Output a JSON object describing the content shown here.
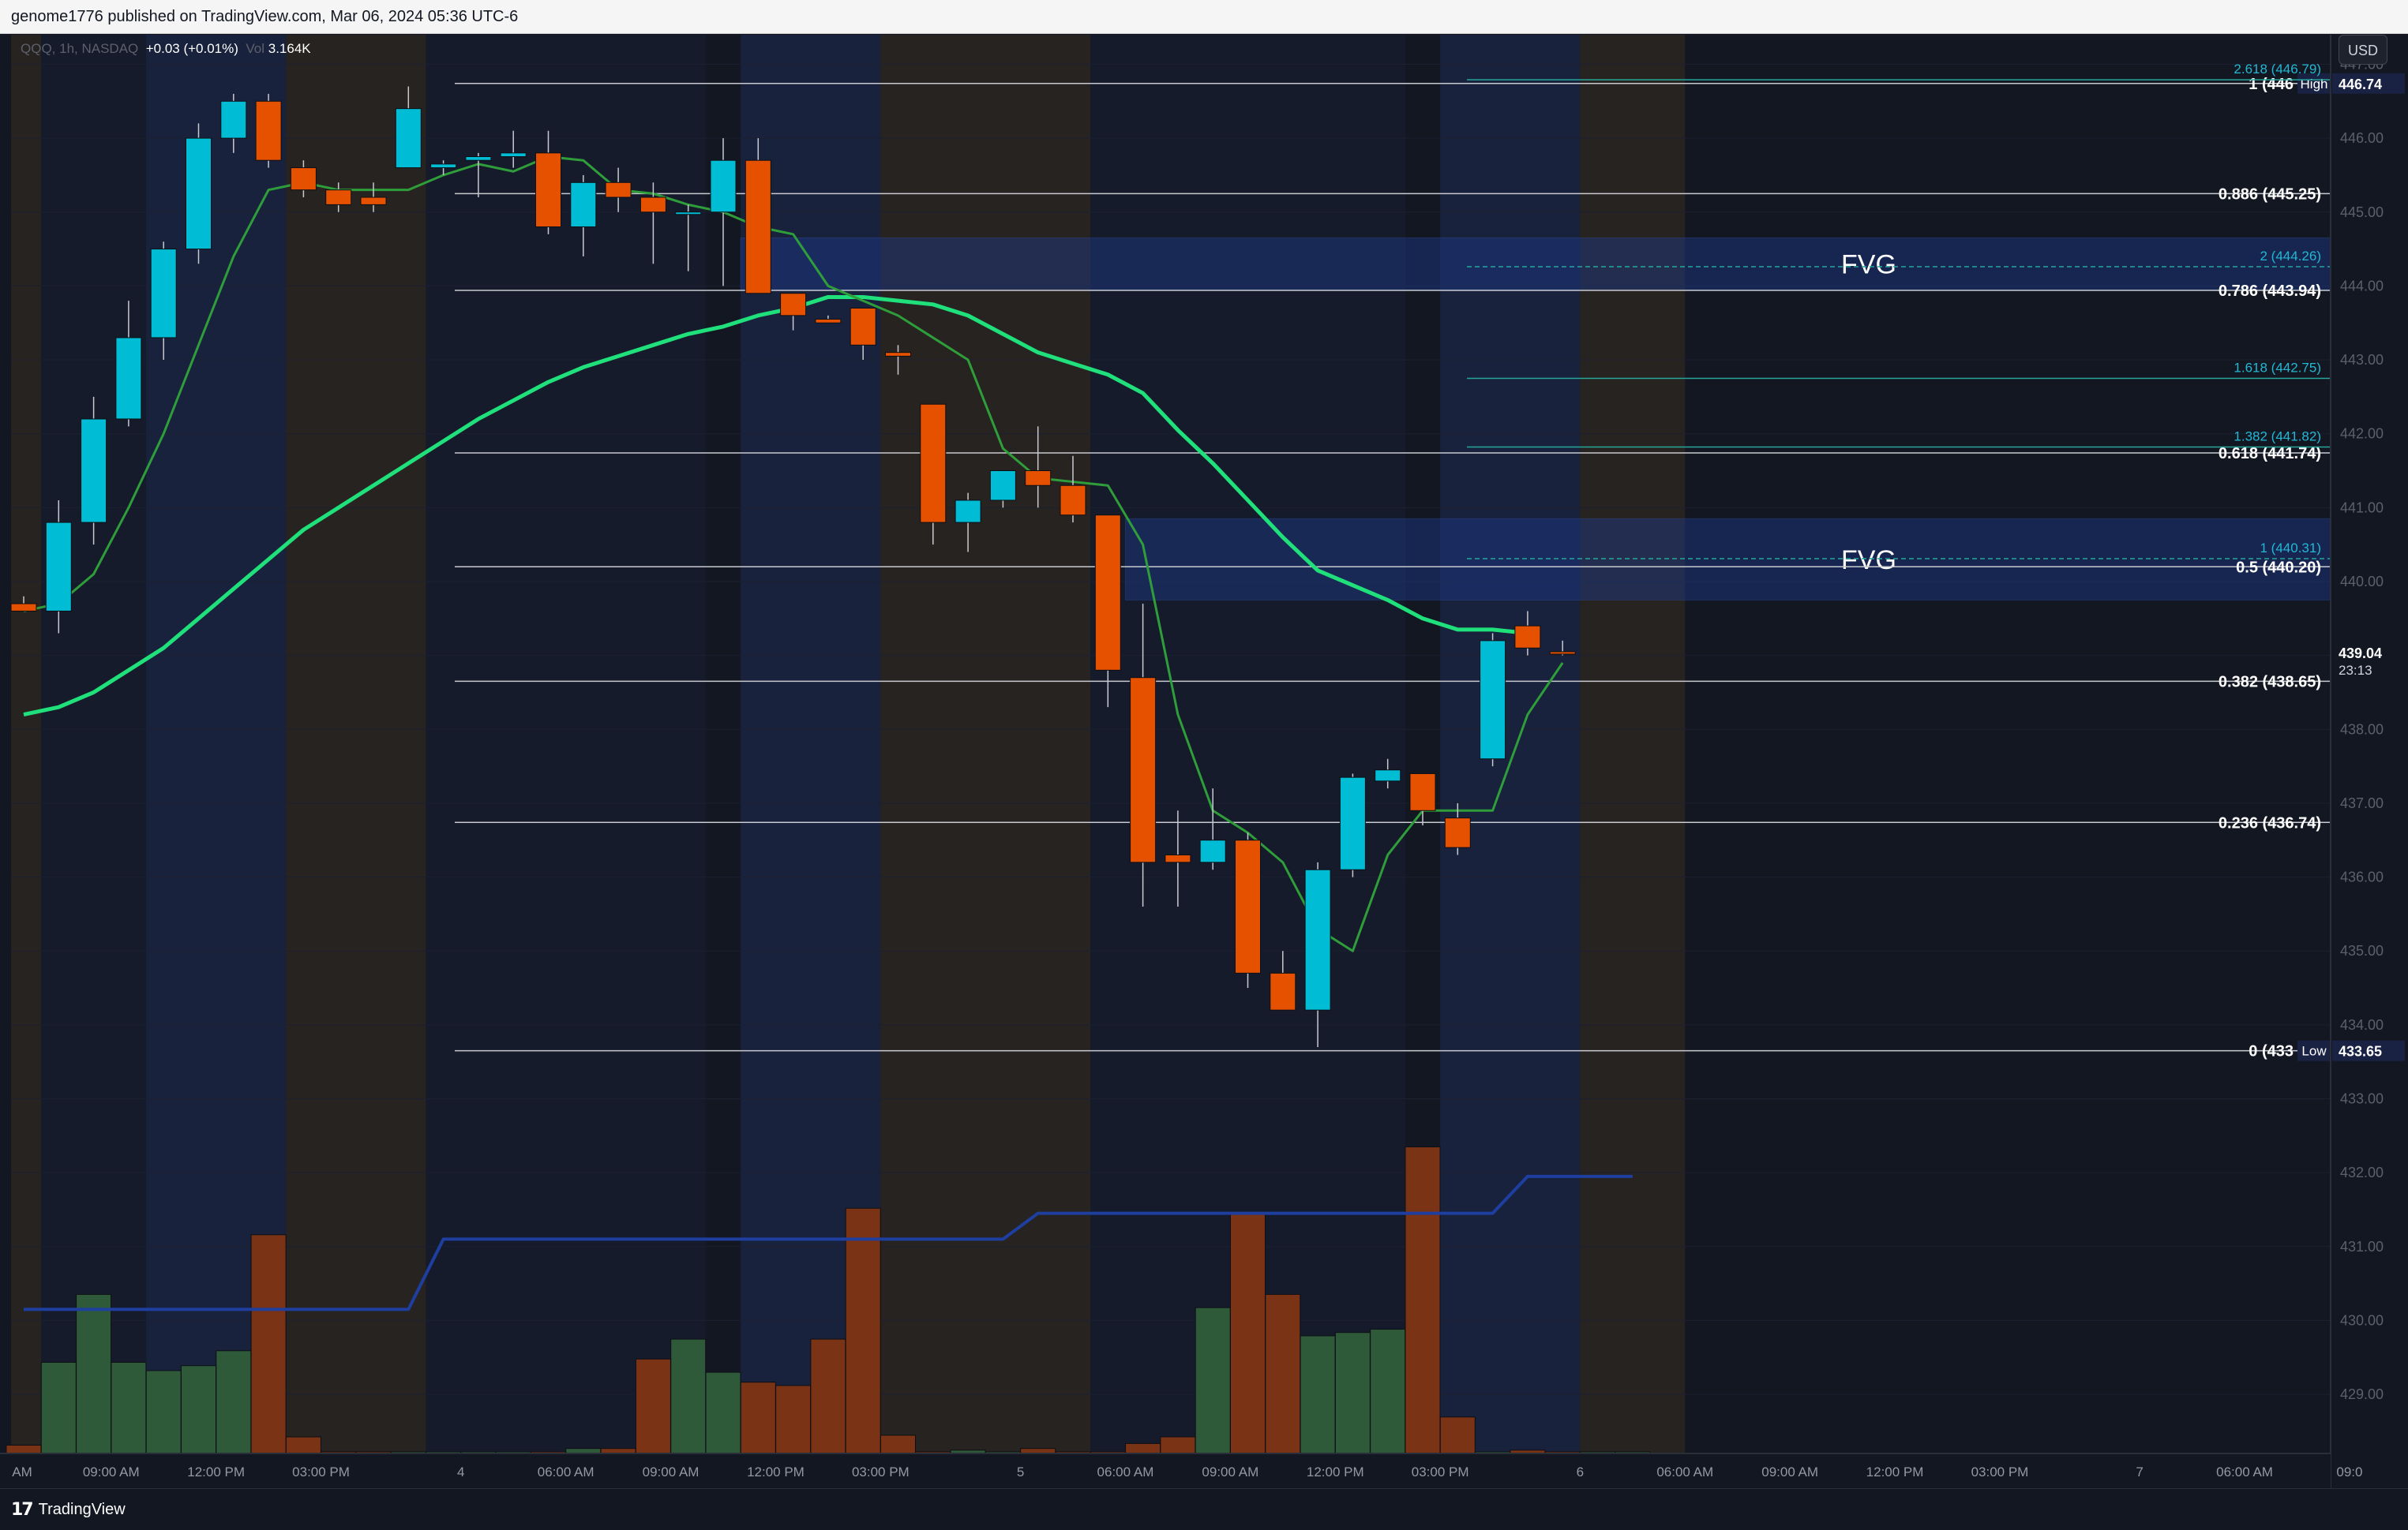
{
  "header": {
    "published_text": "genome1776 published on TradingView.com, Mar 06, 2024 05:36 UTC-6"
  },
  "legend": {
    "symbol": "QQQ, 1h, NASDAQ",
    "change": "+0.03 (+0.01%)",
    "vol_label": "Vol",
    "vol_value": "3.164K"
  },
  "currency_button": "USD",
  "footer": {
    "logo_mark": "17",
    "logo_text": "TradingView"
  },
  "colors": {
    "background": "#131722",
    "up": "#00bcd4",
    "down": "#e65100",
    "vol_up": "#2e5a3a",
    "vol_down": "#7a3314",
    "ema_fast": "#2e9d3a",
    "ema_slow": "#1fe07a",
    "vwap": "#1e3fa0",
    "fvg": "#1e3a8a",
    "fib_ext": "#26a69a",
    "session_blue": "#1a2440",
    "session_brown": "#2a2520"
  },
  "chart_data": {
    "type": "candlestick",
    "y_range": [
      428.2,
      447.4
    ],
    "y_ticks": [
      "429.00",
      "430.00",
      "431.00",
      "432.00",
      "433.00",
      "434.00",
      "435.00",
      "436.00",
      "437.00",
      "438.00",
      "439.00",
      "440.00",
      "441.00",
      "442.00",
      "443.00",
      "444.00",
      "445.00",
      "446.00",
      "447.00"
    ],
    "x_labels": [
      "AM",
      "09:00 AM",
      "12:00 PM",
      "03:00 PM",
      "4",
      "06:00 AM",
      "09:00 AM",
      "12:00 PM",
      "03:00 PM",
      "5",
      "06:00 AM",
      "09:00 AM",
      "12:00 PM",
      "03:00 PM",
      "6",
      "06:00 AM",
      "09:00 AM",
      "12:00 PM",
      "03:00 PM",
      "7",
      "06:00 AM",
      "09:0"
    ],
    "x_label_positions": [
      0,
      2.5,
      5.5,
      8.5,
      12.5,
      15.5,
      18.5,
      21.5,
      24.5,
      28.5,
      31.5,
      34.5,
      37.5,
      40.5,
      44.5,
      47.5,
      50.5,
      53.5,
      56.5,
      60.5,
      63.5,
      66.5
    ],
    "candles": [
      {
        "o": 439.7,
        "h": 439.8,
        "l": 439.65,
        "c": 439.6
      },
      {
        "o": 439.6,
        "h": 441.1,
        "l": 439.3,
        "c": 440.8
      },
      {
        "o": 440.8,
        "h": 442.5,
        "l": 440.5,
        "c": 442.2
      },
      {
        "o": 442.2,
        "h": 443.8,
        "l": 442.1,
        "c": 443.3
      },
      {
        "o": 443.3,
        "h": 444.6,
        "l": 443.0,
        "c": 444.5
      },
      {
        "o": 444.5,
        "h": 446.2,
        "l": 444.3,
        "c": 446.0
      },
      {
        "o": 446.0,
        "h": 446.6,
        "l": 445.8,
        "c": 446.5
      },
      {
        "o": 446.5,
        "h": 446.6,
        "l": 445.6,
        "c": 445.7
      },
      {
        "o": 445.6,
        "h": 445.7,
        "l": 445.2,
        "c": 445.3
      },
      {
        "o": 445.3,
        "h": 445.4,
        "l": 445.0,
        "c": 445.1
      },
      {
        "o": 445.2,
        "h": 445.4,
        "l": 445.0,
        "c": 445.1
      },
      {
        "o": 445.6,
        "h": 446.7,
        "l": 445.6,
        "c": 446.4
      },
      {
        "o": 445.6,
        "h": 445.7,
        "l": 445.5,
        "c": 445.65
      },
      {
        "o": 445.7,
        "h": 445.8,
        "l": 445.2,
        "c": 445.75
      },
      {
        "o": 445.75,
        "h": 446.1,
        "l": 445.6,
        "c": 445.8
      },
      {
        "o": 445.8,
        "h": 446.1,
        "l": 444.7,
        "c": 444.8
      },
      {
        "o": 444.8,
        "h": 445.5,
        "l": 444.4,
        "c": 445.4
      },
      {
        "o": 445.4,
        "h": 445.6,
        "l": 445.0,
        "c": 445.2
      },
      {
        "o": 445.2,
        "h": 445.4,
        "l": 444.3,
        "c": 445.0
      },
      {
        "o": 445.0,
        "h": 445.1,
        "l": 444.2,
        "c": 445.0
      },
      {
        "o": 445.0,
        "h": 446.0,
        "l": 444.0,
        "c": 445.7
      },
      {
        "o": 445.7,
        "h": 446.0,
        "l": 443.9,
        "c": 443.9
      },
      {
        "o": 443.9,
        "h": 443.9,
        "l": 443.4,
        "c": 443.6
      },
      {
        "o": 443.55,
        "h": 443.6,
        "l": 443.5,
        "c": 443.5
      },
      {
        "o": 443.7,
        "h": 443.7,
        "l": 443.0,
        "c": 443.2
      },
      {
        "o": 443.1,
        "h": 443.2,
        "l": 442.8,
        "c": 443.05
      },
      {
        "o": 442.4,
        "h": 442.4,
        "l": 440.5,
        "c": 440.8
      },
      {
        "o": 440.8,
        "h": 441.2,
        "l": 440.4,
        "c": 441.1
      },
      {
        "o": 441.1,
        "h": 441.5,
        "l": 441.0,
        "c": 441.5
      },
      {
        "o": 441.5,
        "h": 442.1,
        "l": 441.0,
        "c": 441.3
      },
      {
        "o": 441.3,
        "h": 441.7,
        "l": 440.8,
        "c": 440.9
      },
      {
        "o": 440.9,
        "h": 440.9,
        "l": 438.3,
        "c": 438.8
      },
      {
        "o": 438.7,
        "h": 439.7,
        "l": 435.6,
        "c": 436.2
      },
      {
        "o": 436.3,
        "h": 436.9,
        "l": 435.6,
        "c": 436.2
      },
      {
        "o": 436.2,
        "h": 437.2,
        "l": 436.1,
        "c": 436.5
      },
      {
        "o": 436.5,
        "h": 436.6,
        "l": 434.5,
        "c": 434.7
      },
      {
        "o": 434.7,
        "h": 435.0,
        "l": 434.2,
        "c": 434.2
      },
      {
        "o": 434.2,
        "h": 436.2,
        "l": 433.7,
        "c": 436.1
      },
      {
        "o": 436.1,
        "h": 437.4,
        "l": 436.0,
        "c": 437.35
      },
      {
        "o": 437.3,
        "h": 437.6,
        "l": 437.2,
        "c": 437.45
      },
      {
        "o": 437.4,
        "h": 437.4,
        "l": 436.7,
        "c": 436.9
      },
      {
        "o": 436.8,
        "h": 437.0,
        "l": 436.3,
        "c": 436.4
      },
      {
        "o": 437.6,
        "h": 439.3,
        "l": 437.5,
        "c": 439.2
      },
      {
        "o": 439.4,
        "h": 439.6,
        "l": 439.0,
        "c": 439.1
      },
      {
        "o": 439.05,
        "h": 439.2,
        "l": 439.0,
        "c": 439.04
      }
    ],
    "volume": [
      0.05,
      0.55,
      0.96,
      0.55,
      0.5,
      0.53,
      0.62,
      1.32,
      0.1,
      0.01,
      0.01,
      0.01,
      0.01,
      0.01,
      0.01,
      0.01,
      0.03,
      0.03,
      0.57,
      0.69,
      0.49,
      0.43,
      0.41,
      0.69,
      1.48,
      0.11,
      0.01,
      0.02,
      0.01,
      0.03,
      0.01,
      0.01,
      0.06,
      0.1,
      0.88,
      1.45,
      0.96,
      0.71,
      0.73,
      0.75,
      1.85,
      0.22,
      0.01,
      0.02,
      0.01,
      0.01,
      0.01
    ],
    "ema_fast": [
      439.6,
      439.7,
      440.1,
      441.0,
      442.0,
      443.2,
      444.4,
      445.3,
      445.4,
      445.3,
      445.3,
      445.3,
      445.5,
      445.65,
      445.55,
      445.75,
      445.7,
      445.3,
      445.25,
      445.1,
      445.0,
      444.8,
      444.7,
      444.0,
      443.8,
      443.6,
      443.3,
      443.0,
      441.8,
      441.4,
      441.35,
      441.3,
      440.5,
      438.2,
      436.9,
      436.6,
      436.2,
      435.3,
      435.0,
      436.3,
      436.9,
      436.9,
      436.9,
      438.2,
      438.9
    ],
    "ema_slow": [
      438.2,
      438.3,
      438.5,
      438.8,
      439.1,
      439.5,
      439.9,
      440.3,
      440.7,
      441.0,
      441.3,
      441.6,
      441.9,
      442.2,
      442.45,
      442.7,
      442.9,
      443.05,
      443.2,
      443.35,
      443.45,
      443.6,
      443.7,
      443.85,
      443.85,
      443.8,
      443.75,
      443.6,
      443.35,
      443.1,
      442.95,
      442.8,
      442.55,
      442.05,
      441.6,
      441.1,
      440.6,
      440.15,
      439.95,
      439.75,
      439.5,
      439.35,
      439.35,
      439.3
    ],
    "vwap": [
      430.15,
      430.15,
      430.15,
      430.15,
      430.15,
      430.15,
      430.15,
      430.15,
      430.15,
      430.15,
      430.15,
      430.15,
      431.1,
      431.1,
      431.1,
      431.1,
      431.1,
      431.1,
      431.1,
      431.1,
      431.1,
      431.1,
      431.1,
      431.1,
      431.1,
      431.1,
      431.1,
      431.1,
      431.1,
      431.45,
      431.45,
      431.45,
      431.45,
      431.45,
      431.45,
      431.45,
      431.45,
      431.45,
      431.45,
      431.45,
      431.45,
      431.45,
      431.45,
      431.95,
      431.95,
      431.95,
      431.95
    ],
    "fib_levels": [
      {
        "ratio": "1 (446",
        "price": 446.74,
        "tag": "High"
      },
      {
        "ratio": "0.886",
        "price": 445.25,
        "label": "0.886 (445.25)"
      },
      {
        "ratio": "0.786",
        "price": 443.94,
        "label": "0.786 (443.94)"
      },
      {
        "ratio": "0.618",
        "price": 441.74,
        "label": "0.618 (441.74)"
      },
      {
        "ratio": "0.5",
        "price": 440.2,
        "label": "0.5 (440.20)"
      },
      {
        "ratio": "0.382",
        "price": 438.65,
        "label": "0.382 (438.65)"
      },
      {
        "ratio": "0.236",
        "price": 436.74,
        "label": "0.236 (436.74)"
      },
      {
        "ratio": "0 (433",
        "price": 433.65,
        "tag": "Low"
      }
    ],
    "fib_extensions": [
      {
        "label": "2.618 (446.79)",
        "price": 446.79
      },
      {
        "label": "2 (444.26)",
        "price": 444.26
      },
      {
        "label": "1.618 (442.75)",
        "price": 442.75
      },
      {
        "label": "1.382 (441.82)",
        "price": 441.82
      },
      {
        "label": "1 (440.31)",
        "price": 440.31
      }
    ],
    "fvg_zones": [
      {
        "label": "FVG",
        "top": 444.65,
        "bottom": 443.95
      },
      {
        "label": "FVG",
        "top": 440.85,
        "bottom": 439.75
      }
    ],
    "price_tags": [
      {
        "text": "446.74",
        "price": 446.74
      },
      {
        "text": "439.04",
        "price": 439.04,
        "sub": "23:13"
      },
      {
        "text": "433.65",
        "price": 433.65
      }
    ]
  }
}
